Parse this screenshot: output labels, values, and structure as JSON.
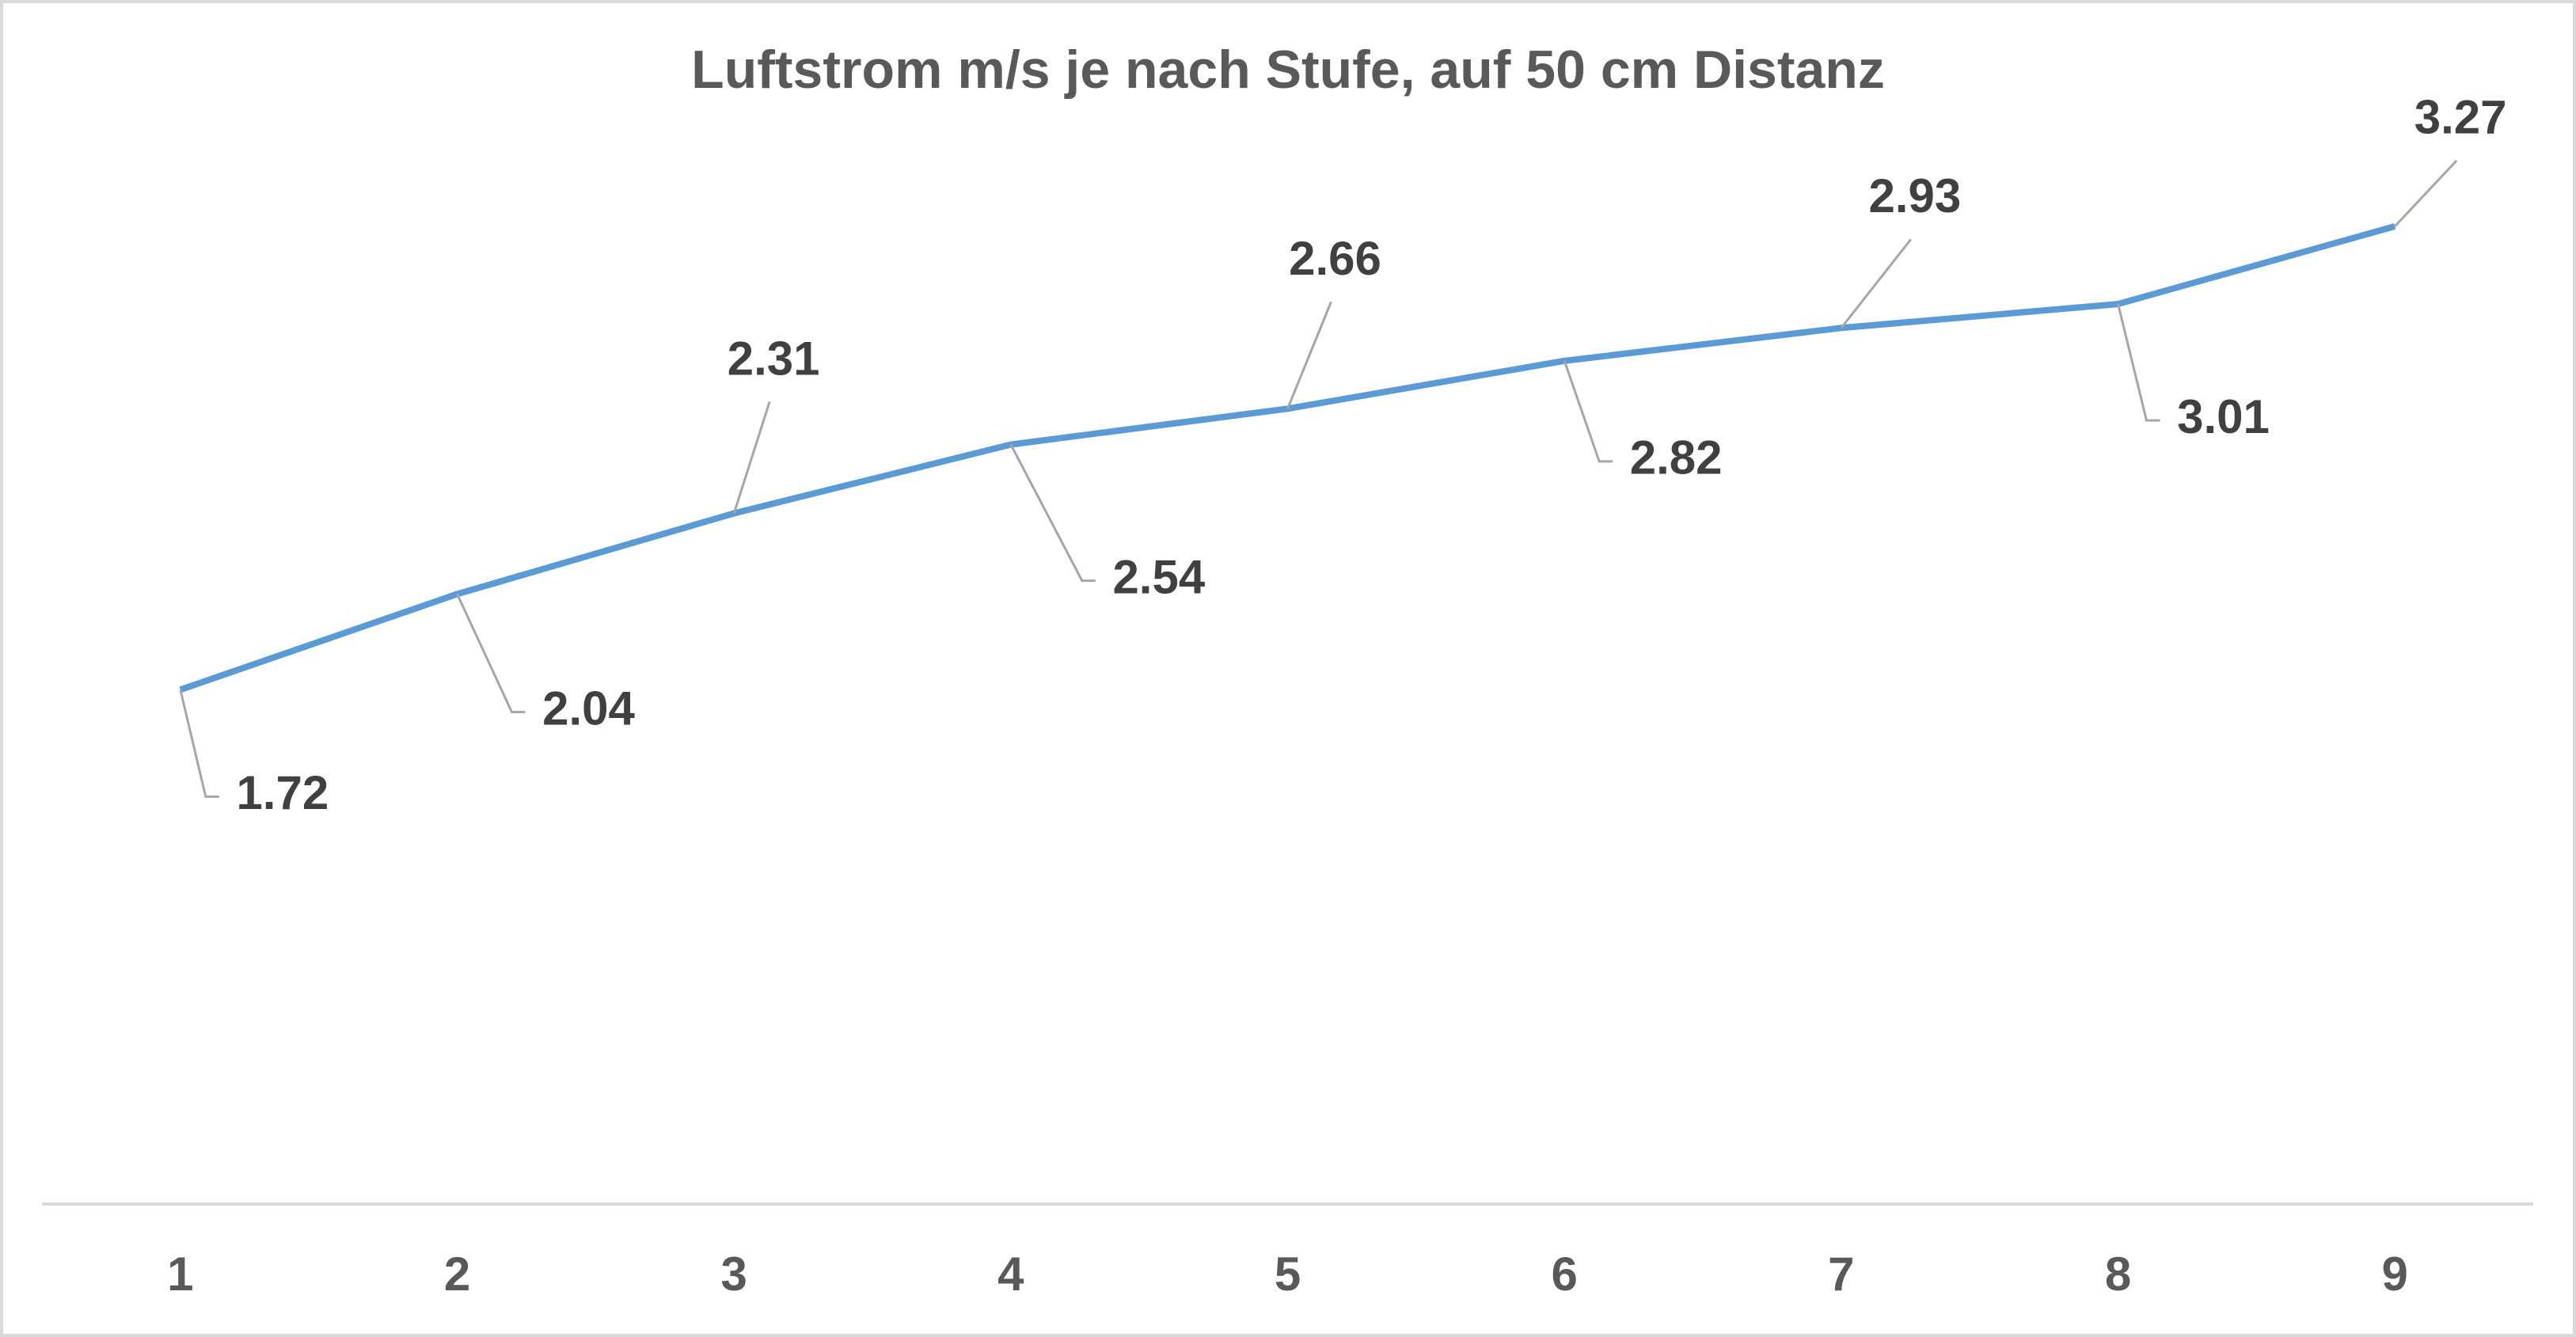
{
  "chart_data": {
    "type": "line",
    "title": "Luftstrom m/s je nach Stufe, auf 50 cm Distanz",
    "categories": [
      "1",
      "2",
      "3",
      "4",
      "5",
      "6",
      "7",
      "8",
      "9"
    ],
    "values": [
      1.72,
      2.04,
      2.31,
      2.54,
      2.66,
      2.82,
      2.93,
      3.01,
      3.27
    ],
    "color": "#5b9bd5",
    "ylim": [
      0,
      3.5
    ]
  }
}
